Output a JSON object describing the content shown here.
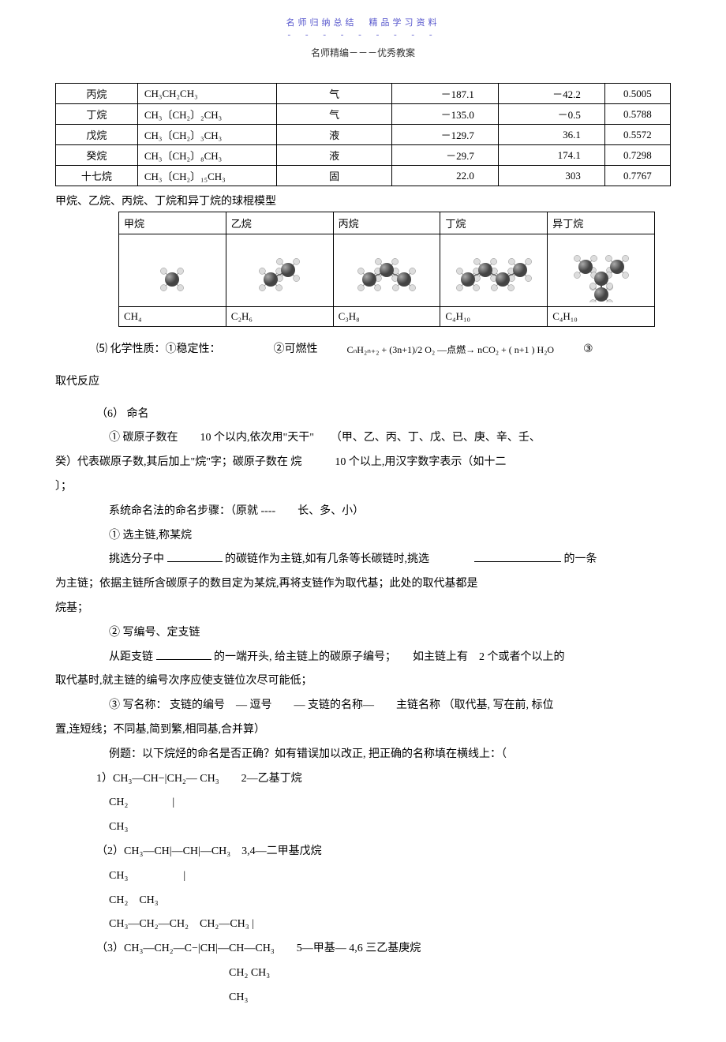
{
  "header": {
    "top": "名师归纳总结　精品学习资料",
    "dashes": "- - - - - - - - -",
    "sub": "名师精编－－－优秀教案"
  },
  "table1": {
    "rows": [
      [
        "丙烷",
        "CH₃CH₂CH₃",
        "气",
        "－187.1",
        "－42.2",
        "0.5005"
      ],
      [
        "丁烷",
        "CH₃〔CH₂〕₂CH₃",
        "气",
        "－135.0",
        "－0.5",
        "0.5788"
      ],
      [
        "戊烷",
        "CH₃〔CH₂〕₃CH₃",
        "液",
        "－129.7",
        "36.1",
        "0.5572"
      ],
      [
        "癸烷",
        "CH₃〔CH₂〕₈CH₃",
        "液",
        "－29.7",
        "174.1",
        "0.7298"
      ],
      [
        "十七烷",
        "CH₃〔CH₂〕₁₅CH₃",
        "固",
        "22.0",
        "303",
        "0.7767"
      ]
    ]
  },
  "models": {
    "caption": "甲烷、乙烷、丙烷、丁烷和异丁烷的球棍模型",
    "headers": [
      "甲烷",
      "乙烷",
      "丙烷",
      "丁烷",
      "异丁烷"
    ],
    "formulas": [
      "CH₄",
      "C₂H₆",
      "C₃H₈",
      "C₄H₁₀",
      "C₄H₁₀"
    ],
    "carbon_color": "#444444",
    "hydrogen_color": "#dddddd",
    "carbons": [
      1,
      2,
      3,
      4,
      4
    ]
  },
  "chem": {
    "line5_prefix": "⑸ 化学性质：①稳定性：",
    "line5_mid": "②可燃性",
    "equation": "CₙH₂ₙ₊₂ + (3n+1)/2 O₂ —点燃→ nCO₂ + ( n+1 ) H₂O",
    "line5_suffix": "③",
    "line_sub": "取代反应",
    "line6": "（6） 命名",
    "p1a": "① 碳原子数在　　10 个以内,依次用\"天干\"　　（甲、乙、丙、丁、戊、已、庚、辛、壬、",
    "p1b": "癸）代表碳原子数,其后加上\"烷\"字；碳原子数在 烷　　　10 个以上,用汉字数字表示（如十二",
    "p1c": "〕；",
    "p2": "系统命名法的命名步骤：（原就 ----　　长、多、小）",
    "p3": "① 选主链,称某烷",
    "p4a": "挑选分子中",
    "p4b": "的碳链作为主链,如有几条等长碳链时,挑选",
    "p4c": "的一条",
    "p5": "为主链；依据主链所含碳原子的数目定为某烷,再将支链作为取代基；此处的取代基都是",
    "p6": "烷基；",
    "p7": "② 写编号、定支链",
    "p8a": "从距支链",
    "p8b": "的一端开头, 给主链上的碳原子编号；　　如主链上有　2 个或者个以上的",
    "p9": "取代基时,就主链的编号次序应使支链位次尽可能低；",
    "p10": "③ 写名称： 支链的编号　— 逗号　　— 支链的名称—　　主链名称 （取代基, 写在前, 标位",
    "p11": "置,连短线；不同基,简到繁,相同基,合并算）",
    "p12": "例题：以下烷烃的命名是否正确？如有错误加以改正, 把正确的名称填在横线上：（",
    "ex1a": "1）CH₃—CH−|CH₂— CH₃　　2—乙基丁烷",
    "ex1b": "CH₂　　　　|",
    "ex1c": "CH₃",
    "ex2a": "（2）CH₃—CH|—CH|—CH₃　3,4—二甲基戊烷",
    "ex2b": "CH₃　　　　　|",
    "ex2c": "CH₂　CH₃",
    "ex2d": "CH₃—CH₂—CH₂　CH₂—CH₃ |",
    "ex3a": "（3）CH₃—CH₂—C−|CH|—CH—CH₃　　5—甲基— 4,6 三乙基庚烷",
    "ex3b": "CH₂ CH₃",
    "ex3c": "CH₃"
  },
  "style": {
    "page_bg": "#ffffff",
    "text_color": "#000000",
    "header_color": "#5555cc",
    "border_color": "#000000",
    "body_fontsize": 14,
    "table_fontsize": 13
  }
}
